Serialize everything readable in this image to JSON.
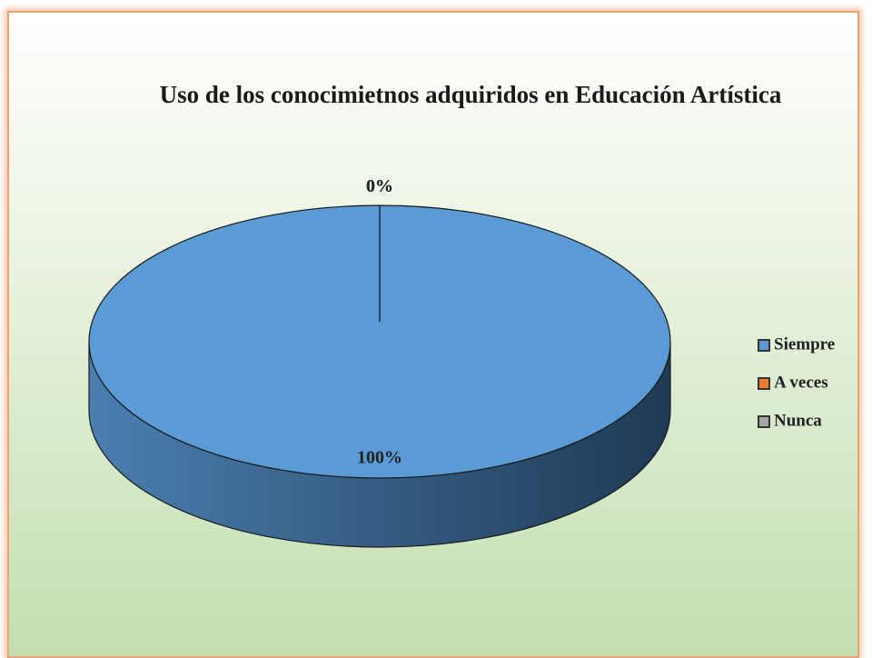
{
  "chart_data": {
    "type": "pie",
    "title": "Uso de los conocimietnos adquiridos en Educación Artística",
    "categories": [
      "Siempre",
      "A veces",
      "Nunca"
    ],
    "values": [
      100,
      0,
      0
    ],
    "value_labels": [
      "100%",
      "0%",
      "0%"
    ],
    "colors": [
      "#5b9bd5",
      "#ed7d31",
      "#a5a5a5"
    ],
    "legend": "right"
  }
}
